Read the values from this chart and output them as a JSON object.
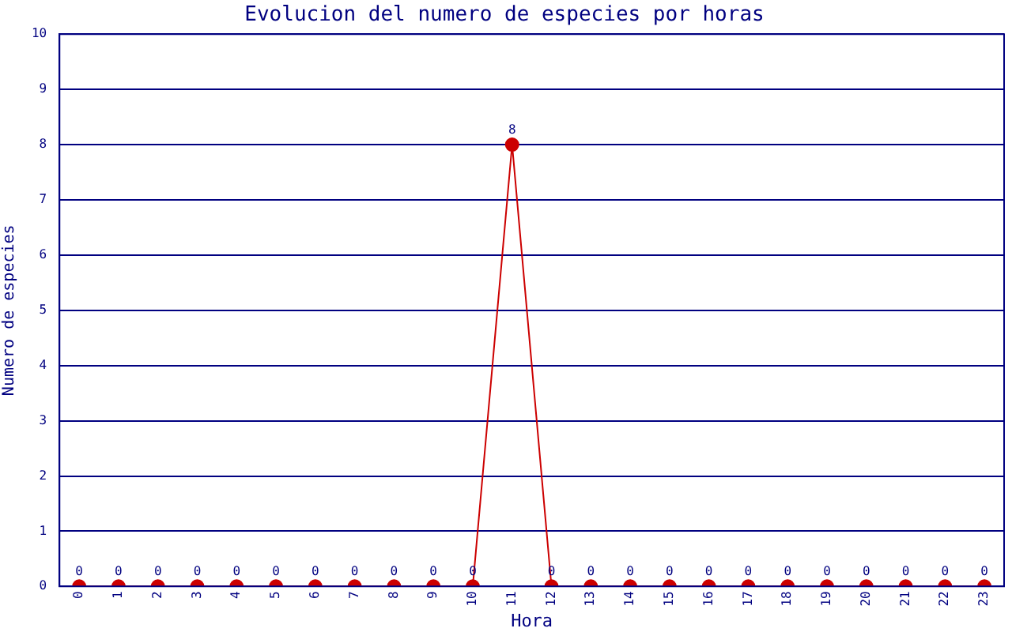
{
  "chart_data": {
    "type": "line",
    "title": "Evolucion del numero de especies por horas",
    "xlabel": "Hora",
    "ylabel": "Numero de especies",
    "categories": [
      "0",
      "1",
      "2",
      "3",
      "4",
      "5",
      "6",
      "7",
      "8",
      "9",
      "10",
      "11",
      "12",
      "13",
      "14",
      "15",
      "16",
      "17",
      "18",
      "19",
      "20",
      "21",
      "22",
      "23"
    ],
    "series": [
      {
        "color": "#cc0000",
        "values": [
          0,
          0,
          0,
          0,
          0,
          0,
          0,
          0,
          0,
          0,
          0,
          8,
          0,
          0,
          0,
          0,
          0,
          0,
          0,
          0,
          0,
          0,
          0,
          0
        ]
      }
    ],
    "ylim": [
      0,
      10
    ],
    "yticks": [
      0,
      1,
      2,
      3,
      4,
      5,
      6,
      7,
      8,
      9,
      10
    ],
    "grid": "y",
    "marker": "circle",
    "line_style": "solid",
    "data_labels": true,
    "legend": false
  }
}
